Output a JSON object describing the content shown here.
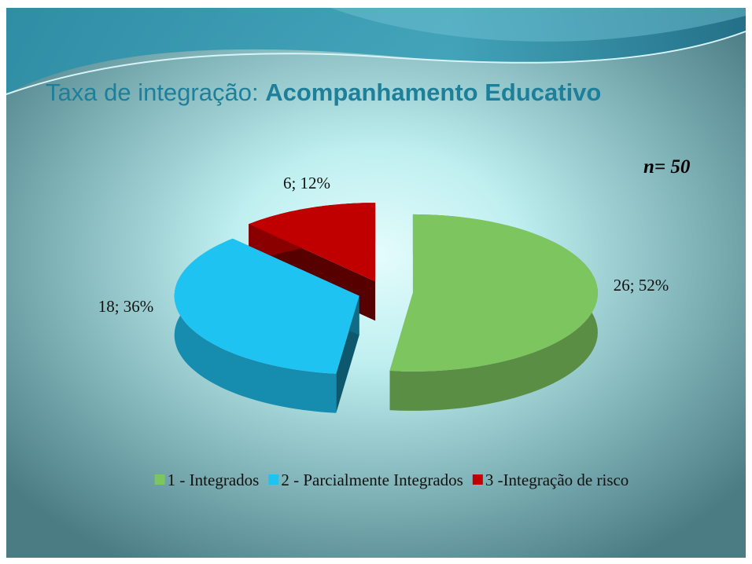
{
  "chart_data": {
    "type": "pie",
    "title": "Taxa de integração: ",
    "title_bold": "Acompanhamento Educativo",
    "annotation": "n= 50",
    "categories": [
      "1 - Integrados",
      "2 - Parcialmente Integrados",
      "3 -Integração de risco"
    ],
    "values": [
      26,
      18,
      6
    ],
    "value_labels": [
      "26; 52%",
      "18; 36%",
      "6; 12%"
    ],
    "colors": [
      "#7dc55e",
      "#1fc3f2",
      "#c00000"
    ],
    "legend": "bottom",
    "exploded": true
  }
}
